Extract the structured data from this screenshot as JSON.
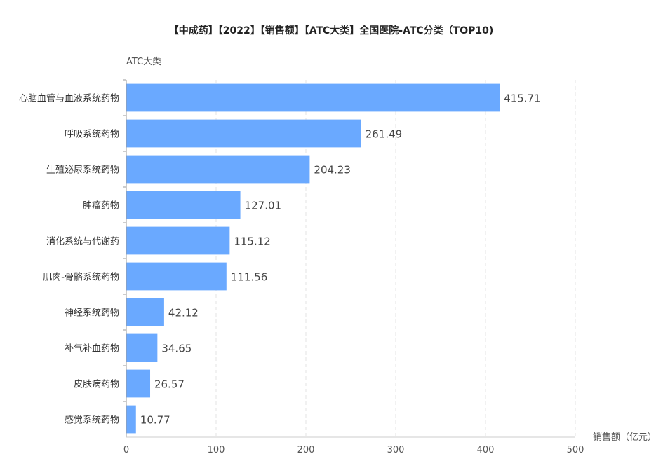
{
  "chart_data": {
    "type": "bar",
    "orientation": "horizontal",
    "title": "【中成药】【2022】【销售额】【ATC大类】全国医院-ATC分类（TOP10)",
    "ylabel": "ATC大类",
    "xlabel": "销售额（亿元）",
    "xlim": [
      0,
      500
    ],
    "xticks": [
      "0",
      "100",
      "200",
      "300",
      "400",
      "500"
    ],
    "categories": [
      "心脑血管与血液系统药物",
      "呼吸系统药物",
      "生殖泌尿系统药物",
      "肿瘤药物",
      "消化系统与代谢药",
      "肌肉-骨骼系统药物",
      "神经系统药物",
      "补气补血药物",
      "皮肤病药物",
      "感觉系统药物"
    ],
    "values": [
      415.71,
      261.49,
      204.23,
      127.01,
      115.12,
      111.56,
      42.12,
      34.65,
      26.57,
      10.77
    ],
    "value_labels": [
      "415.71",
      "261.49",
      "204.23",
      "127.01",
      "115.12",
      "111.56",
      "42.12",
      "34.65",
      "26.57",
      "10.77"
    ],
    "bar_color": "#6aa9ff",
    "grid": "vertical-dashed",
    "legend": "none"
  }
}
